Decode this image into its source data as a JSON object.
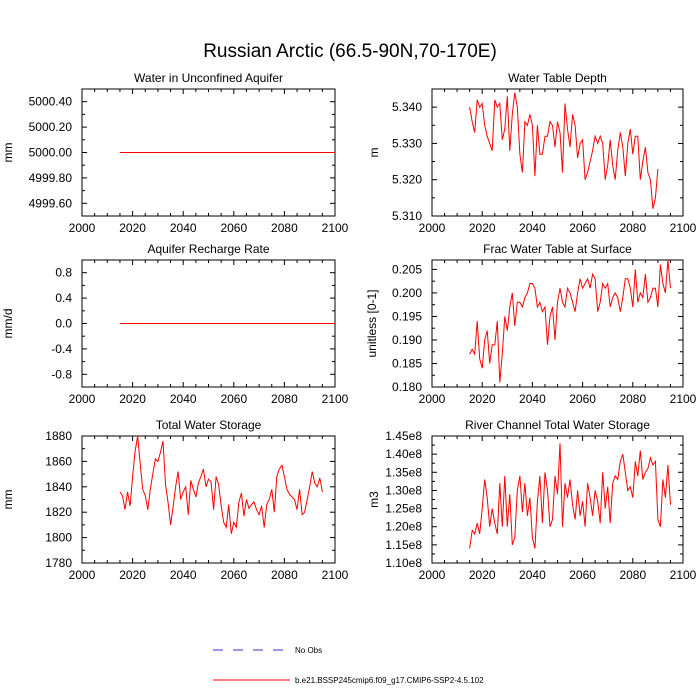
{
  "title": "Russian Arctic (66.5-90N,70-170E)",
  "colors": {
    "series": "#ff0000",
    "obs": "#3333cc",
    "frame": "#000000"
  },
  "legend": {
    "entries": [
      {
        "label": "No Obs",
        "style": "dashed",
        "color": "#3333cc"
      },
      {
        "label": "b.e21.BSSP245cmip6.f09_g17.CMIP6-SSP2-4.5.102",
        "style": "solid",
        "color": "#ff0000"
      }
    ]
  },
  "chart_data": [
    {
      "type": "line",
      "title": "Water in Unconfined Aquifer",
      "ylabel": "mm",
      "xlim": [
        2000,
        2100
      ],
      "ylim": [
        4999.5,
        5000.5
      ],
      "xticks": [
        "2000",
        "2020",
        "2040",
        "2060",
        "2080",
        "2100"
      ],
      "yticks": [
        "4999.60",
        "4999.80",
        "5000.00",
        "5000.20",
        "5000.40"
      ],
      "ytick_values": [
        4999.6,
        4999.8,
        5000.0,
        5000.2,
        5000.4
      ],
      "series": [
        {
          "x_start": 2015,
          "x_end": 2100,
          "constant": 5000.0
        }
      ]
    },
    {
      "type": "line",
      "title": "Water Table Depth",
      "ylabel": "m",
      "xlim": [
        2000,
        2100
      ],
      "ylim": [
        5.31,
        5.345
      ],
      "xticks": [
        "2000",
        "2020",
        "2040",
        "2060",
        "2080",
        "2100"
      ],
      "yticks": [
        "5.310",
        "5.320",
        "5.330",
        "5.340"
      ],
      "ytick_values": [
        5.31,
        5.32,
        5.33,
        5.34
      ],
      "series": [
        {
          "x_start": 2015,
          "values": [
            5.34,
            5.336,
            5.333,
            5.342,
            5.34,
            5.341,
            5.335,
            5.332,
            5.33,
            5.328,
            5.342,
            5.34,
            5.341,
            5.331,
            5.334,
            5.343,
            5.328,
            5.338,
            5.344,
            5.34,
            5.327,
            5.322,
            5.336,
            5.335,
            5.338,
            5.335,
            5.321,
            5.335,
            5.327,
            5.327,
            5.332,
            5.332,
            5.336,
            5.335,
            5.329,
            5.336,
            5.333,
            5.322,
            5.341,
            5.334,
            5.329,
            5.338,
            5.335,
            5.326,
            5.33,
            5.331,
            5.32,
            5.322,
            5.325,
            5.328,
            5.332,
            5.33,
            5.332,
            5.33,
            5.32,
            5.324,
            5.331,
            5.324,
            5.32,
            5.328,
            5.333,
            5.329,
            5.321,
            5.33,
            5.334,
            5.327,
            5.332,
            5.332,
            5.32,
            5.325,
            5.329,
            5.322,
            5.32,
            5.312,
            5.315,
            5.323
          ]
        }
      ]
    },
    {
      "type": "line",
      "title": "Aquifer Recharge Rate",
      "ylabel": "mm/d",
      "xlim": [
        2000,
        2100
      ],
      "ylim": [
        -1.0,
        1.0
      ],
      "xticks": [
        "2000",
        "2020",
        "2040",
        "2060",
        "2080",
        "2100"
      ],
      "yticks": [
        "-0.8",
        "-0.4",
        "0.0",
        "0.4",
        "0.8"
      ],
      "ytick_values": [
        -0.8,
        -0.4,
        0.0,
        0.4,
        0.8
      ],
      "series": [
        {
          "x_start": 2015,
          "x_end": 2100,
          "constant": 0.0
        }
      ]
    },
    {
      "type": "line",
      "title": "Frac Water Table at Surface",
      "ylabel": "unitless [0-1]",
      "xlim": [
        2000,
        2100
      ],
      "ylim": [
        0.18,
        0.207
      ],
      "xticks": [
        "2000",
        "2020",
        "2040",
        "2060",
        "2080",
        "2100"
      ],
      "yticks": [
        "0.180",
        "0.185",
        "0.190",
        "0.195",
        "0.200",
        "0.205"
      ],
      "ytick_values": [
        0.18,
        0.185,
        0.19,
        0.195,
        0.2,
        0.205
      ],
      "series": [
        {
          "x_start": 2015,
          "values": [
            0.187,
            0.188,
            0.187,
            0.194,
            0.186,
            0.184,
            0.19,
            0.192,
            0.185,
            0.189,
            0.189,
            0.194,
            0.181,
            0.187,
            0.195,
            0.192,
            0.197,
            0.2,
            0.193,
            0.198,
            0.198,
            0.197,
            0.199,
            0.2,
            0.202,
            0.202,
            0.201,
            0.197,
            0.198,
            0.196,
            0.197,
            0.189,
            0.195,
            0.197,
            0.19,
            0.198,
            0.201,
            0.198,
            0.197,
            0.201,
            0.2,
            0.198,
            0.196,
            0.2,
            0.203,
            0.201,
            0.202,
            0.203,
            0.201,
            0.204,
            0.203,
            0.196,
            0.198,
            0.202,
            0.201,
            0.202,
            0.197,
            0.199,
            0.2,
            0.199,
            0.196,
            0.199,
            0.203,
            0.203,
            0.201,
            0.197,
            0.205,
            0.198,
            0.2,
            0.199,
            0.204,
            0.198,
            0.199,
            0.201,
            0.201,
            0.197,
            0.206,
            0.202,
            0.2,
            0.207,
            0.201
          ]
        }
      ]
    },
    {
      "type": "line",
      "title": "Total Water Storage",
      "ylabel": "mm",
      "xlim": [
        2000,
        2100
      ],
      "ylim": [
        1780,
        1880
      ],
      "xticks": [
        "2000",
        "2020",
        "2040",
        "2060",
        "2080",
        "2100"
      ],
      "yticks": [
        "1780",
        "1800",
        "1820",
        "1840",
        "1860",
        "1880"
      ],
      "ytick_values": [
        1780,
        1800,
        1820,
        1840,
        1860,
        1880
      ],
      "series": [
        {
          "x_start": 2015,
          "values": [
            1836,
            1833,
            1822,
            1836,
            1825,
            1848,
            1868,
            1880,
            1858,
            1838,
            1833,
            1822,
            1838,
            1850,
            1862,
            1860,
            1867,
            1876,
            1842,
            1828,
            1810,
            1824,
            1840,
            1852,
            1830,
            1836,
            1840,
            1818,
            1845,
            1838,
            1832,
            1843,
            1848,
            1854,
            1840,
            1846,
            1844,
            1822,
            1848,
            1842,
            1825,
            1812,
            1808,
            1826,
            1803,
            1812,
            1808,
            1828,
            1835,
            1817,
            1830,
            1823,
            1826,
            1828,
            1822,
            1818,
            1825,
            1808,
            1826,
            1830,
            1838,
            1820,
            1848,
            1854,
            1857,
            1848,
            1838,
            1834,
            1832,
            1830,
            1822,
            1838,
            1818,
            1820,
            1830,
            1840,
            1852,
            1843,
            1840,
            1847,
            1836
          ]
        }
      ]
    },
    {
      "type": "line",
      "title": "River Channel Total Water Storage",
      "ylabel": "m3",
      "xlim": [
        2000,
        2100
      ],
      "ylim": [
        110000000,
        145000000
      ],
      "xticks": [
        "2000",
        "2020",
        "2040",
        "2060",
        "2080",
        "2100"
      ],
      "yticks": [
        "1.10e8",
        "1.15e8",
        "1.20e8",
        "1.25e8",
        "1.30e8",
        "1.35e8",
        "1.40e8",
        "1.45e8"
      ],
      "ytick_values": [
        110000000,
        115000000,
        120000000,
        125000000,
        130000000,
        135000000,
        140000000,
        145000000
      ],
      "series": [
        {
          "x_start": 2015,
          "values": [
            114000000,
            119000000,
            118000000,
            121000000,
            118000000,
            125000000,
            133000000,
            128000000,
            120000000,
            125000000,
            121000000,
            118000000,
            132000000,
            120000000,
            134000000,
            120000000,
            129000000,
            115000000,
            117000000,
            130000000,
            134000000,
            124000000,
            132000000,
            123000000,
            128000000,
            117000000,
            114000000,
            127000000,
            134000000,
            121000000,
            135000000,
            130000000,
            120000000,
            122000000,
            134000000,
            129000000,
            143000000,
            120000000,
            132000000,
            128000000,
            133000000,
            126000000,
            122000000,
            130000000,
            123000000,
            127000000,
            120000000,
            132000000,
            128000000,
            123000000,
            130000000,
            127000000,
            121000000,
            135000000,
            125000000,
            131000000,
            121000000,
            132000000,
            134000000,
            133000000,
            138000000,
            140000000,
            135000000,
            130000000,
            131000000,
            128000000,
            138000000,
            134000000,
            141000000,
            133000000,
            135000000,
            136000000,
            139000000,
            137000000,
            138000000,
            122000000,
            120000000,
            133000000,
            128000000,
            137000000,
            126000000
          ]
        }
      ]
    }
  ]
}
